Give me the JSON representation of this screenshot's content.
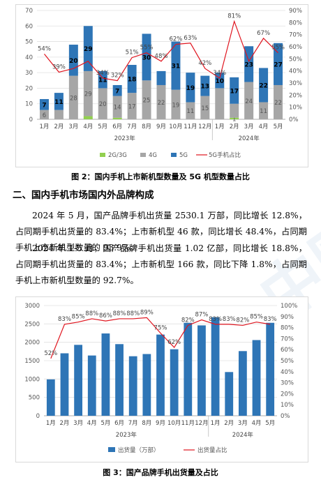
{
  "chart1": {
    "caption": "图 2：国内手机上市新机型数量及 5G 机型数量占比",
    "chart_data": {
      "type": "bar",
      "stacked": true,
      "categories": [
        "1月",
        "2月",
        "3月",
        "4月",
        "5月",
        "6月",
        "7月",
        "8月",
        "9月",
        "10月",
        "11月",
        "12月",
        "1月",
        "2月",
        "3月",
        "4月",
        "5月"
      ],
      "year_labels": [
        "2023年",
        "2024年"
      ],
      "series": [
        {
          "name": "2G/3G",
          "color": "#92d050",
          "values": [
            0,
            0,
            0,
            2,
            0,
            1,
            0,
            0,
            0,
            0,
            0,
            0,
            0,
            1,
            0,
            0,
            0
          ],
          "labels": [
            "",
            "",
            "",
            "",
            "",
            "",
            "",
            "",
            "",
            "",
            "",
            "",
            "",
            "1",
            "",
            "",
            ""
          ]
        },
        {
          "name": "4G",
          "color": "#a6a6a6",
          "values": [
            6,
            6,
            28,
            29,
            20,
            14,
            17,
            25,
            22,
            19,
            11,
            15,
            20,
            9,
            24,
            11,
            22
          ],
          "labels": [
            "6",
            "",
            "28",
            "29",
            "20",
            "14",
            "17",
            "25",
            "22",
            "19",
            "11",
            "15",
            "",
            "",
            "24",
            "11",
            "22"
          ]
        },
        {
          "name": "5G",
          "color": "#2e75b6",
          "values": [
            7,
            11,
            20,
            29,
            11,
            7,
            18,
            30,
            9,
            31,
            19,
            13,
            10,
            17,
            23,
            22,
            27
          ],
          "labels": [
            "7",
            "11",
            "20",
            "29",
            "11",
            "7",
            "18",
            "30",
            "",
            "31",
            "19",
            "13",
            "10",
            "17",
            "23",
            "22",
            "27"
          ]
        }
      ],
      "line": {
        "name": "5G手机占比",
        "color": "#e0141e",
        "values": [
          54,
          39,
          42,
          48,
          34,
          32,
          51,
          55,
          48,
          62,
          63,
          42,
          34,
          81,
          48,
          67,
          55
        ],
        "labels": [
          "54%",
          "39%",
          "",
          "",
          "34%",
          "32%",
          "51%",
          "55%",
          "48%",
          "62%",
          "63%",
          "42%",
          "34%",
          "81%",
          "",
          "67%",
          "55%"
        ]
      },
      "y_left": {
        "min": 0,
        "max": 70,
        "ticks": [
          0,
          10,
          20,
          30,
          40,
          50,
          60,
          70
        ]
      },
      "y_right": {
        "min": 0,
        "max": 90,
        "ticks": [
          "0%",
          "10%",
          "20%",
          "30%",
          "40%",
          "50%",
          "60%",
          "70%",
          "80%",
          "90%"
        ]
      },
      "legend": [
        "2G/3G",
        "4G",
        "5G",
        "5G手机占比"
      ]
    }
  },
  "section_title": "二、国内手机市场国内外品牌构成",
  "paragraphs": [
    "2024 年 5 月，国产品牌手机出货量 2530.1 万部，同比增长 12.8%，占同期手机出货量的 83.4%；上市新机型 46 款，同比增长 48.4%，占同期手机上市新机型数量的 93.9%。",
    "2024 年 1-5 月，国产品牌手机出货量 1.02 亿部，同比增长 18.8%，占同期手机出货量的 83.4%；上市新机型 166 款，同比下降 1.8%，占同期手机上市新机型数量的 92.7%。"
  ],
  "chart2": {
    "caption": "图 3：国产品牌手机出货量及占比",
    "chart_data": {
      "type": "bar",
      "categories": [
        "1月",
        "2月",
        "3月",
        "4月",
        "5月",
        "6月",
        "7月",
        "8月",
        "9月",
        "10月",
        "11月",
        "12月",
        "1月",
        "2月",
        "3月",
        "4月",
        "5月"
      ],
      "year_labels": [
        "2023年",
        "2024年"
      ],
      "bars": {
        "name": "出货量（万部）",
        "color": "#2e75b6",
        "values": [
          990,
          1700,
          1930,
          1640,
          2240,
          1950,
          1620,
          1680,
          2210,
          1810,
          2530,
          2460,
          2680,
          1190,
          1760,
          2060,
          2530
        ]
      },
      "line": {
        "name": "出货量占比",
        "color": "#e0141e",
        "values": [
          52,
          83,
          85,
          88,
          86,
          88,
          88,
          89,
          75,
          62,
          82,
          87,
          83,
          83,
          82,
          85,
          83
        ],
        "labels": [
          "52%",
          "83%",
          "85%",
          "88%",
          "86%",
          "88%",
          "88%",
          "89%",
          "75%",
          "62%",
          "82%",
          "87%",
          "83%",
          "83%",
          "82%",
          "85%",
          "83%"
        ]
      },
      "y_left": {
        "min": 0,
        "max": 3000,
        "ticks": [
          0,
          500,
          1000,
          1500,
          2000,
          2500,
          3000
        ]
      },
      "y_right": {
        "min": 0,
        "max": 100,
        "ticks": [
          "0%",
          "10%",
          "20%",
          "30%",
          "40%",
          "50%",
          "60%",
          "70%",
          "80%",
          "90%",
          "100%"
        ]
      },
      "legend": [
        "出货量（万部）",
        "出货量占比"
      ]
    }
  },
  "watermark": "CAICT 中国信通院"
}
